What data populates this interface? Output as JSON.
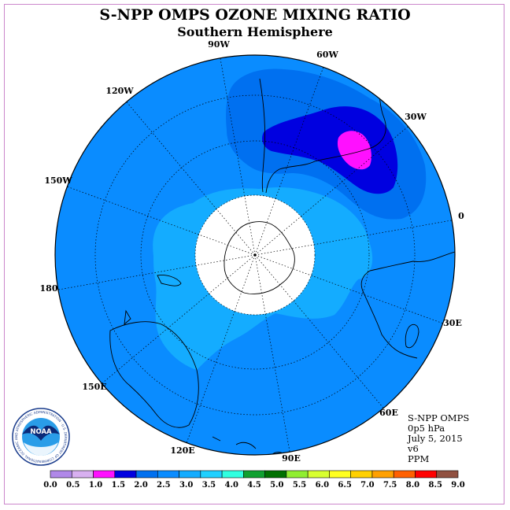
{
  "title": "S-NPP OMPS OZONE MIXING RATIO",
  "subtitle": "Southern Hemisphere",
  "longitude_labels": [
    "90W",
    "60W",
    "30W",
    "0",
    "30E",
    "60E",
    "90E",
    "120E",
    "150E",
    "180",
    "150W",
    "120W"
  ],
  "info": [
    "S-NPP OMPS",
    "0p5 hPa",
    "July 5, 2015",
    "v6",
    "PPM"
  ],
  "logo_text": "NOAA",
  "logo_ring_text": "NATIONAL OCEANIC AND ATMOSPHERIC ADMINISTRATION · U.S. DEPARTMENT OF COMMERCE",
  "colorbar": {
    "ticks": [
      "0.0",
      "0.5",
      "1.0",
      "1.5",
      "2.0",
      "2.5",
      "3.0",
      "3.5",
      "4.0",
      "4.5",
      "5.0",
      "5.5",
      "6.0",
      "6.5",
      "7.0",
      "7.5",
      "8.0",
      "8.5",
      "9.0"
    ],
    "colors": [
      "#b088e8",
      "#d8b0f0",
      "#ff10ff",
      "#0000e0",
      "#0070f0",
      "#0a8cff",
      "#14acff",
      "#20d0ff",
      "#30ffe0",
      "#10a030",
      "#007000",
      "#90ee30",
      "#d8ff30",
      "#ffff20",
      "#ffd000",
      "#ffa000",
      "#ff6000",
      "#ff0000",
      "#905040"
    ]
  },
  "colors": {
    "disk_base": "#0a8cff",
    "band_2_5": "#0a8cff",
    "band_2_0": "#0070f0",
    "band_1_5": "#0000e0",
    "band_1_0": "#ff10ff",
    "band_3_0": "#14acff",
    "no_data": "#ffffff",
    "coast": "#000000",
    "grid": "#000000"
  }
}
